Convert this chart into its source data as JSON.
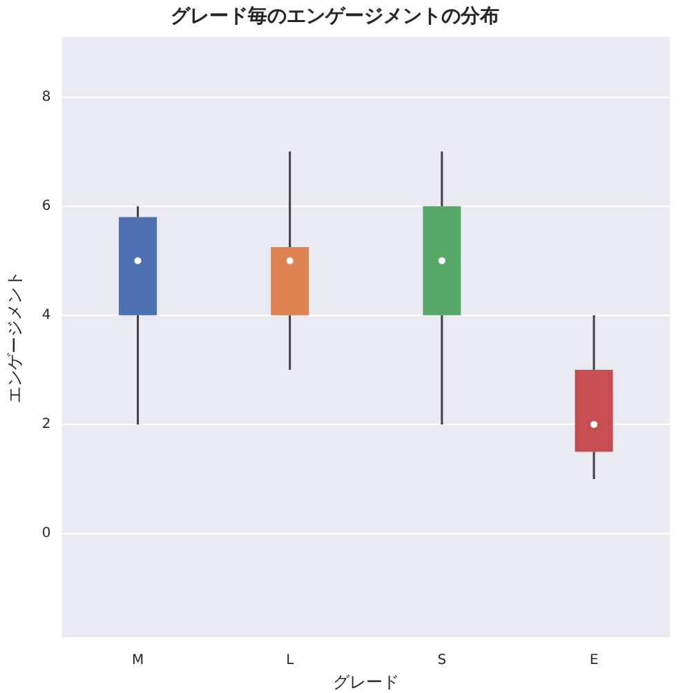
{
  "chart_data": {
    "type": "box",
    "title": "グレード毎のエンゲージメントの分布",
    "xlabel": "グレード",
    "ylabel": "エンゲージメント",
    "categories": [
      "M",
      "L",
      "S",
      "E"
    ],
    "colors": [
      "#4c72b0",
      "#dd8452",
      "#55a868",
      "#c44e52"
    ],
    "boxes": [
      {
        "low": 2,
        "q1": 4,
        "median": 5,
        "q3": 5.8,
        "high": 6
      },
      {
        "low": 3,
        "q1": 4,
        "median": 5,
        "q3": 5.25,
        "high": 7
      },
      {
        "low": 2,
        "q1": 4,
        "median": 5,
        "q3": 6,
        "high": 7
      },
      {
        "low": 1,
        "q1": 1.5,
        "median": 2,
        "q3": 3,
        "high": 4
      }
    ],
    "ylim": [
      -1.9,
      9.1
    ],
    "yticks": [
      0,
      2,
      4,
      6,
      8
    ],
    "grid": "y",
    "legend": false
  }
}
